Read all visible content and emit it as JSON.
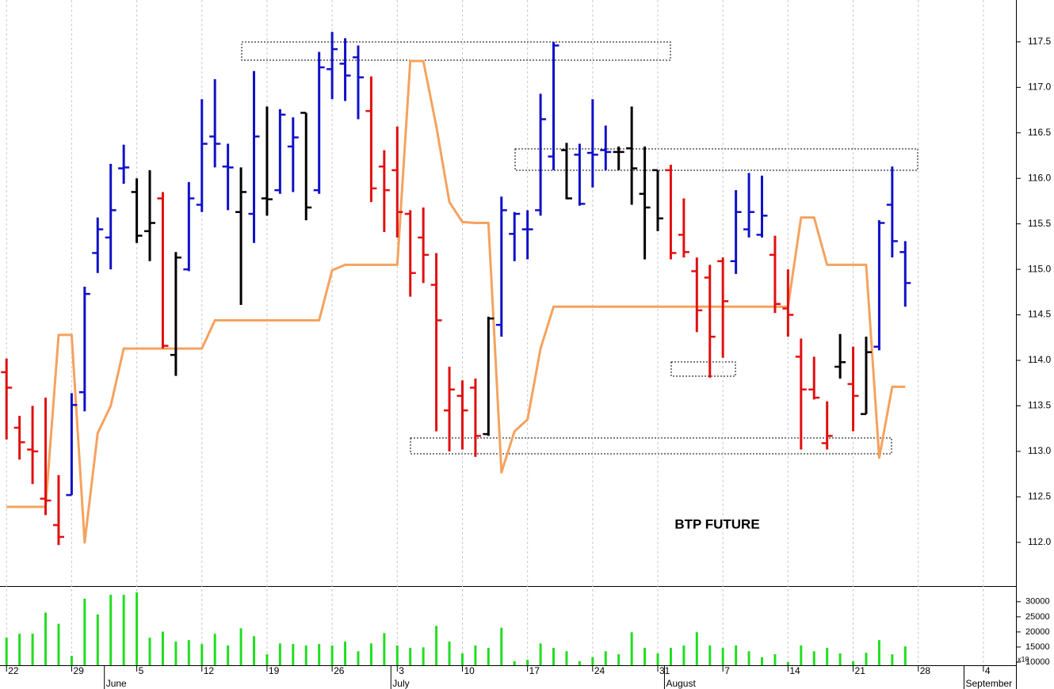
{
  "chart_data": {
    "type": "ohlc",
    "annotation": "BTP FUTURE",
    "categories": [
      "22",
      null,
      null,
      null,
      null,
      "29",
      null,
      null,
      null,
      null,
      "5",
      null,
      null,
      null,
      null,
      "12",
      null,
      null,
      null,
      null,
      "19",
      null,
      null,
      null,
      null,
      "26",
      null,
      null,
      null,
      null,
      "3",
      null,
      null,
      null,
      null,
      "10",
      null,
      null,
      null,
      null,
      "17",
      null,
      null,
      null,
      null,
      "24",
      null,
      null,
      null,
      null,
      "31",
      null,
      null,
      null,
      null,
      "7",
      null,
      null,
      null,
      null,
      "14",
      null,
      null,
      null,
      null,
      "21",
      null,
      null,
      null,
      null,
      "28",
      null,
      null,
      null,
      null,
      "4",
      null,
      null
    ],
    "month_categories": [
      null,
      null,
      null,
      null,
      null,
      null,
      null,
      null,
      "June",
      null,
      null,
      null,
      null,
      null,
      null,
      null,
      null,
      null,
      null,
      null,
      null,
      null,
      null,
      null,
      null,
      null,
      null,
      null,
      null,
      null,
      "July",
      null,
      null,
      null,
      null,
      null,
      null,
      null,
      null,
      null,
      null,
      null,
      null,
      null,
      null,
      null,
      null,
      null,
      null,
      null,
      null,
      "August",
      null,
      null,
      null,
      null,
      null,
      null,
      null,
      null,
      null,
      null,
      null,
      null,
      null,
      null,
      null,
      null,
      null,
      null,
      null,
      null,
      null,
      null,
      "September",
      null,
      null,
      null
    ],
    "open": [
      113.87,
      113.26,
      113.02,
      112.48,
      112.19,
      112.52,
      113.65,
      115.18,
      115.35,
      116.11,
      115.85,
      115.42,
      115.78,
      114.06,
      115.0,
      115.71,
      116.46,
      116.13,
      115.63,
      115.61,
      115.78,
      115.87,
      116.35,
      116.72,
      115.87,
      117.2,
      117.26,
      117.33,
      116.74,
      116.13,
      116.09,
      115.61,
      115.35,
      114.83,
      113.45,
      113.61,
      113.7,
      113.19,
      114.39,
      115.39,
      115.44,
      115.65,
      116.24,
      116.31,
      116.26,
      116.28,
      116.31,
      116.29,
      116.33,
      115.83,
      116.09,
      116.09,
      115.38,
      114.98,
      114.91,
      115.09,
      115.09,
      115.44,
      115.38,
      115.16,
      114.57,
      114.04,
      113.68,
      113.09,
      113.93,
      113.74,
      113.41,
      114.15,
      115.71,
      115.19,
      null,
      null,
      null,
      null,
      null,
      null,
      null,
      null
    ],
    "high": [
      114.02,
      113.39,
      113.5,
      113.59,
      112.74,
      113.64,
      114.81,
      115.57,
      116.16,
      116.37,
      116.0,
      116.09,
      115.85,
      115.19,
      115.96,
      116.87,
      117.09,
      116.38,
      116.12,
      117.18,
      116.79,
      116.76,
      116.67,
      116.72,
      117.39,
      117.61,
      117.54,
      117.46,
      117.12,
      116.31,
      116.57,
      115.65,
      115.68,
      115.18,
      113.93,
      113.78,
      113.8,
      114.48,
      115.8,
      115.63,
      115.65,
      116.93,
      117.5,
      116.39,
      116.38,
      116.87,
      116.58,
      116.35,
      116.79,
      116.35,
      116.09,
      116.15,
      115.78,
      115.13,
      115.05,
      115.13,
      115.87,
      116.06,
      116.03,
      115.37,
      115.0,
      114.24,
      114.04,
      113.55,
      114.29,
      114.15,
      114.26,
      115.54,
      116.13,
      115.31,
      null,
      null,
      null,
      null,
      null,
      null,
      null,
      null
    ],
    "low": [
      113.13,
      112.91,
      112.64,
      112.3,
      111.97,
      112.52,
      113.44,
      114.96,
      115.0,
      115.94,
      115.29,
      115.09,
      114.13,
      113.83,
      114.98,
      115.63,
      116.12,
      115.65,
      114.61,
      115.29,
      115.59,
      115.83,
      115.85,
      115.54,
      115.83,
      116.87,
      116.85,
      116.65,
      115.74,
      115.41,
      115.35,
      114.7,
      114.85,
      113.22,
      113.0,
      113.02,
      112.94,
      113.17,
      114.26,
      115.09,
      115.11,
      115.59,
      116.09,
      115.77,
      115.7,
      115.9,
      116.09,
      116.09,
      115.71,
      115.11,
      115.42,
      115.11,
      115.13,
      114.31,
      113.81,
      114.03,
      114.95,
      115.35,
      115.35,
      114.52,
      114.26,
      113.02,
      113.57,
      113.02,
      113.8,
      113.22,
      113.41,
      114.11,
      115.13,
      114.59,
      null,
      null,
      null,
      null,
      null,
      null,
      null,
      null
    ],
    "close": [
      113.7,
      113.1,
      113.0,
      112.46,
      112.06,
      113.51,
      114.73,
      115.44,
      115.65,
      116.12,
      115.37,
      115.51,
      114.16,
      115.13,
      115.78,
      116.38,
      116.38,
      116.12,
      115.85,
      116.46,
      115.77,
      116.7,
      116.45,
      115.68,
      117.22,
      117.42,
      117.13,
      117.11,
      115.89,
      115.87,
      115.63,
      114.96,
      115.16,
      114.44,
      113.68,
      113.45,
      113.17,
      114.46,
      115.65,
      115.61,
      115.44,
      116.65,
      117.46,
      115.78,
      115.72,
      116.26,
      116.29,
      116.29,
      116.11,
      115.68,
      115.56,
      115.18,
      115.19,
      114.55,
      114.26,
      114.65,
      115.63,
      115.63,
      115.59,
      114.62,
      114.5,
      113.68,
      113.59,
      113.17,
      113.98,
      113.61,
      114.09,
      115.51,
      115.31,
      114.85,
      null,
      null,
      null,
      null,
      null,
      null,
      null,
      null
    ],
    "bar_colors": [
      "#e01010",
      "#e01010",
      "#e01010",
      "#e01010",
      "#e01010",
      "#1010c8",
      "#1010c8",
      "#1010c8",
      "#1010c8",
      "#1010c8",
      "#000000",
      "#000000",
      "#e01010",
      "#000000",
      "#1010c8",
      "#1010c8",
      "#1010c8",
      "#1010c8",
      "#000000",
      "#1010c8",
      "#000000",
      "#1010c8",
      "#1010c8",
      "#000000",
      "#1010c8",
      "#1010c8",
      "#1010c8",
      "#1010c8",
      "#e01010",
      "#e01010",
      "#e01010",
      "#e01010",
      "#e01010",
      "#e01010",
      "#e01010",
      "#e01010",
      "#e01010",
      "#000000",
      "#1010c8",
      "#1010c8",
      "#1010c8",
      "#1010c8",
      "#1010c8",
      "#000000",
      "#1010c8",
      "#1010c8",
      "#1010c8",
      "#000000",
      "#000000",
      "#000000",
      "#000000",
      "#e01010",
      "#e01010",
      "#e01010",
      "#e01010",
      "#e01010",
      "#1010c8",
      "#1010c8",
      "#1010c8",
      "#e01010",
      "#e01010",
      "#e01010",
      "#e01010",
      "#e01010",
      "#000000",
      "#e01010",
      "#000000",
      "#1010c8",
      "#1010c8",
      "#1010c8",
      null,
      null,
      null,
      null,
      null,
      null,
      null,
      null
    ],
    "line": {
      "color": "#f5a25e",
      "values": [
        112.39,
        112.39,
        112.39,
        112.39,
        114.28,
        114.28,
        112.0,
        113.2,
        113.5,
        114.13,
        114.13,
        114.13,
        114.13,
        114.13,
        114.13,
        114.13,
        114.44,
        114.44,
        114.44,
        114.44,
        114.44,
        114.44,
        114.44,
        114.44,
        114.44,
        114.99,
        115.05,
        115.05,
        115.05,
        115.05,
        115.05,
        117.29,
        117.29,
        116.57,
        115.74,
        115.52,
        115.51,
        115.51,
        112.77,
        113.22,
        113.35,
        114.13,
        114.59,
        114.59,
        114.59,
        114.59,
        114.59,
        114.59,
        114.59,
        114.59,
        114.59,
        114.59,
        114.59,
        114.59,
        114.59,
        114.59,
        114.59,
        114.59,
        114.59,
        114.59,
        114.59,
        115.57,
        115.57,
        115.05,
        115.05,
        115.05,
        115.05,
        112.93,
        113.71,
        113.71,
        null,
        null,
        null,
        null,
        null,
        null,
        null,
        null
      ]
    },
    "volume": {
      "color": "#22dd22",
      "values": [
        18100,
        19400,
        19400,
        26400,
        22700,
        12100,
        31000,
        25800,
        32300,
        32300,
        33100,
        18100,
        20100,
        16800,
        17300,
        16000,
        19400,
        15500,
        21200,
        18600,
        12600,
        16200,
        16000,
        15500,
        16000,
        15500,
        16800,
        13600,
        16200,
        19600,
        15500,
        14700,
        14900,
        22000,
        16800,
        12900,
        15500,
        14700,
        21400,
        10300,
        10800,
        16200,
        14700,
        13600,
        10300,
        11600,
        13600,
        12600,
        19900,
        14700,
        12900,
        14700,
        15500,
        19900,
        15500,
        14700,
        15500,
        13600,
        11600,
        12600,
        10000,
        15500,
        13600,
        14700,
        12900,
        10300,
        13100,
        17300,
        12600,
        15200,
        null,
        null,
        null,
        null,
        null,
        null,
        null,
        null
      ]
    },
    "ylim": [
      111.52,
      117.96
    ],
    "yticks": [
      {
        "value": 112,
        "label": "112.0"
      },
      112.5,
      {
        "value": 113,
        "label": "113.0"
      },
      113.5,
      {
        "value": 114,
        "label": "114.0"
      },
      114.5,
      {
        "value": 115,
        "label": "115.0"
      },
      115.5,
      {
        "value": 116,
        "label": "116.0"
      },
      116.5,
      {
        "value": 117,
        "label": "117.0"
      },
      117.5
    ],
    "y2lim": [
      8960,
      34940
    ],
    "y2ticks": [
      10000,
      15000,
      20000,
      25000,
      30000
    ],
    "y2_multiplier_label": "x10",
    "grid": true
  }
}
